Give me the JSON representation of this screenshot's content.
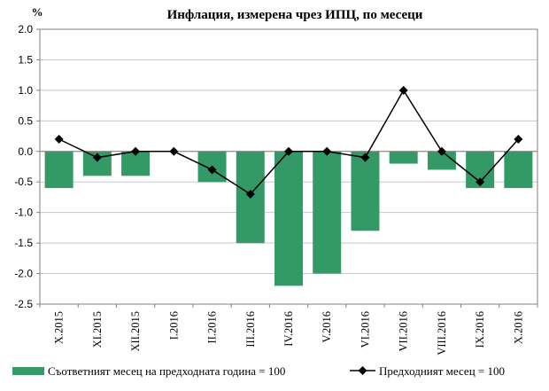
{
  "chart_data": {
    "type": "bar+line",
    "title": "Инфлация, измерена чрез ИПЦ, по месеци",
    "unit_label": "%",
    "categories": [
      "X.2015",
      "XI.2015",
      "XII.2015",
      "I.2016",
      "II.2016",
      "III.2016",
      "IV.2016",
      "V.2016",
      "VI.2016",
      "VII.2016",
      "VIII.2016",
      "IX.2016",
      "X.2016"
    ],
    "ylim": [
      -2.5,
      2.0
    ],
    "yticks": [
      "2.0",
      "1.5",
      "1.0",
      "0.5",
      "0.0",
      "-0.5",
      "-1.0",
      "-1.5",
      "-2.0",
      "-2.5"
    ],
    "ytick_values": [
      2.0,
      1.5,
      1.0,
      0.5,
      0.0,
      -0.5,
      -1.0,
      -1.5,
      -2.0,
      -2.5
    ],
    "grid": true,
    "legend_position": "bottom",
    "series": [
      {
        "name": "Съответният месец на предходната година = 100",
        "type": "bar",
        "color": "#339966",
        "values": [
          -0.6,
          -0.4,
          -0.4,
          0.0,
          -0.5,
          -1.5,
          -2.2,
          -2.0,
          -1.3,
          -0.2,
          -0.3,
          -0.6,
          -0.6
        ]
      },
      {
        "name": "Предходният месец = 100",
        "type": "line",
        "color": "#000000",
        "marker": "diamond",
        "values": [
          0.2,
          -0.1,
          0.0,
          0.0,
          -0.3,
          -0.7,
          0.0,
          0.0,
          -0.1,
          1.0,
          0.0,
          -0.5,
          0.2
        ]
      }
    ]
  }
}
